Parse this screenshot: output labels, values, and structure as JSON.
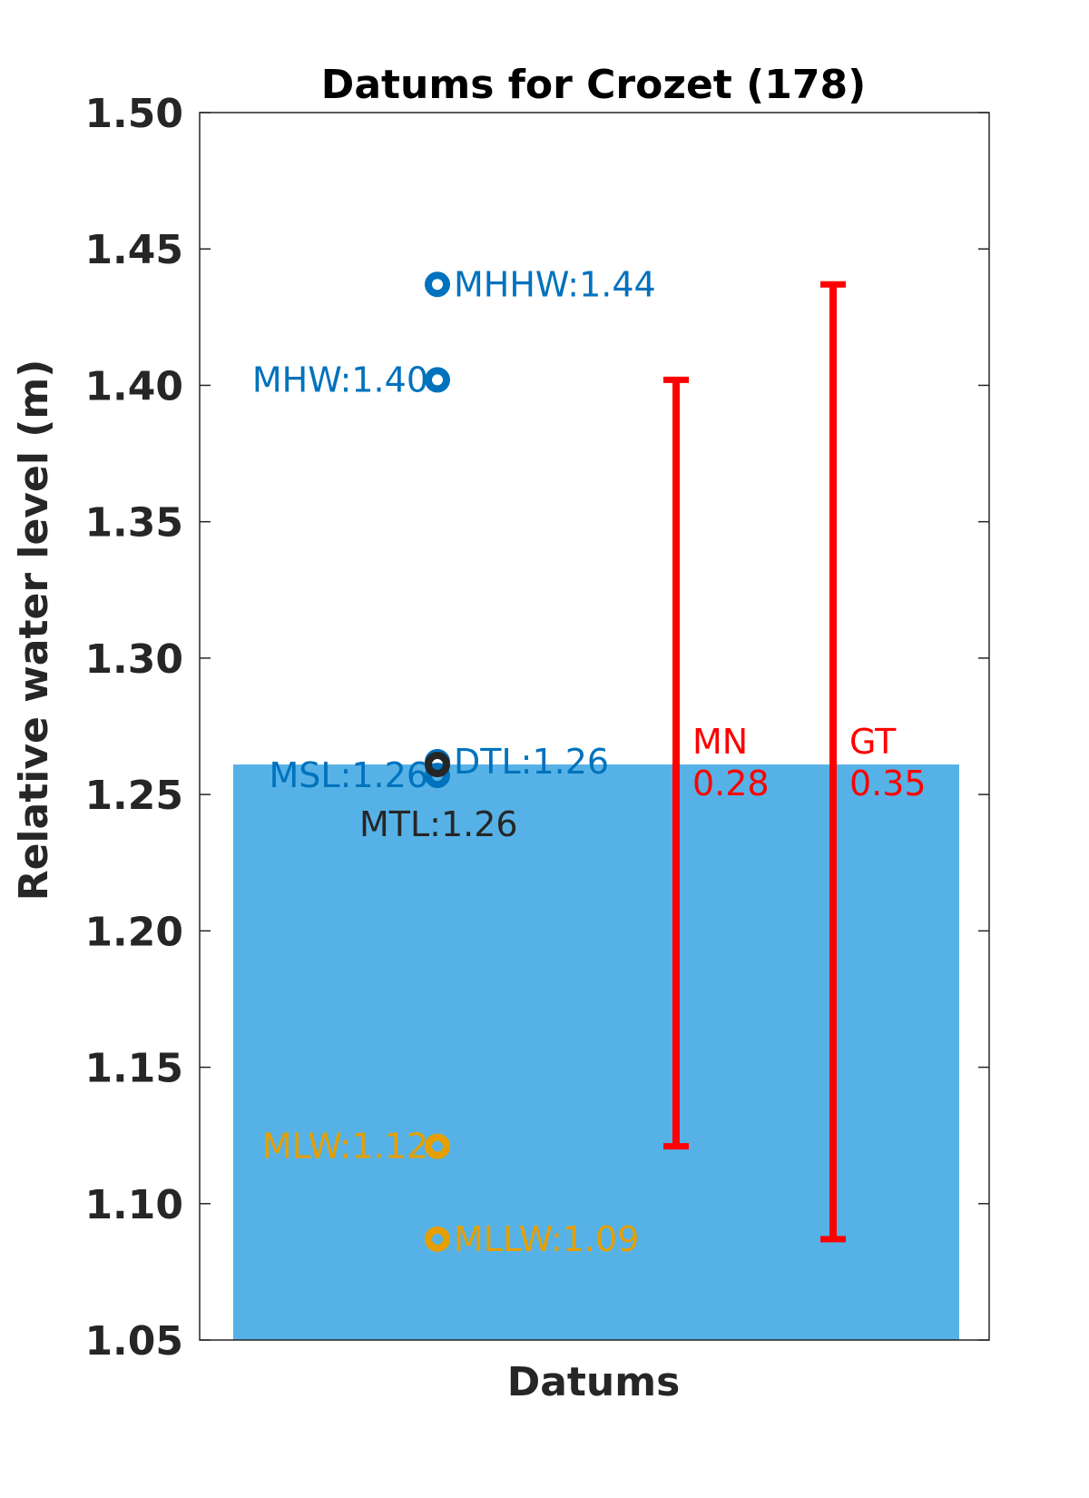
{
  "chart_data": {
    "type": "bar",
    "title": "Datums for Crozet (178)",
    "xlabel": "Datums",
    "ylabel": "Relative water level (m)",
    "ylim": [
      1.05,
      1.5
    ],
    "yticks": [
      "1.05",
      "1.10",
      "1.15",
      "1.20",
      "1.25",
      "1.30",
      "1.35",
      "1.40",
      "1.45",
      "1.50"
    ],
    "grid": false,
    "bar": {
      "value": 1.261,
      "color": "#56b2e6"
    },
    "colors": {
      "high": "#0072bd",
      "low": "#e69f00",
      "mid": "#262626",
      "range": "#ff0000"
    },
    "datums": [
      {
        "name": "MHHW",
        "label": "MHHW:1.44",
        "value": 1.437,
        "group": "high",
        "label_side": "right"
      },
      {
        "name": "MHW",
        "label": "MHW:1.40",
        "value": 1.402,
        "group": "high",
        "label_side": "left"
      },
      {
        "name": "DTL",
        "label": "DTL:1.26",
        "value": 1.262,
        "group": "high",
        "label_side": "right"
      },
      {
        "name": "MSL",
        "label": "MSL:1.26",
        "value": 1.257,
        "group": "high",
        "label_side": "left"
      },
      {
        "name": "MTL",
        "label": "MTL:1.26",
        "value": 1.261,
        "group": "mid",
        "label_side": "below"
      },
      {
        "name": "MLW",
        "label": "MLW:1.12",
        "value": 1.121,
        "group": "low",
        "label_side": "left"
      },
      {
        "name": "MLLW",
        "label": "MLLW:1.09",
        "value": 1.087,
        "group": "low",
        "label_side": "right"
      }
    ],
    "ranges": [
      {
        "name": "MN",
        "value": "0.28",
        "from": 1.121,
        "to": 1.402
      },
      {
        "name": "GT",
        "value": "0.35",
        "from": 1.087,
        "to": 1.437
      }
    ]
  }
}
